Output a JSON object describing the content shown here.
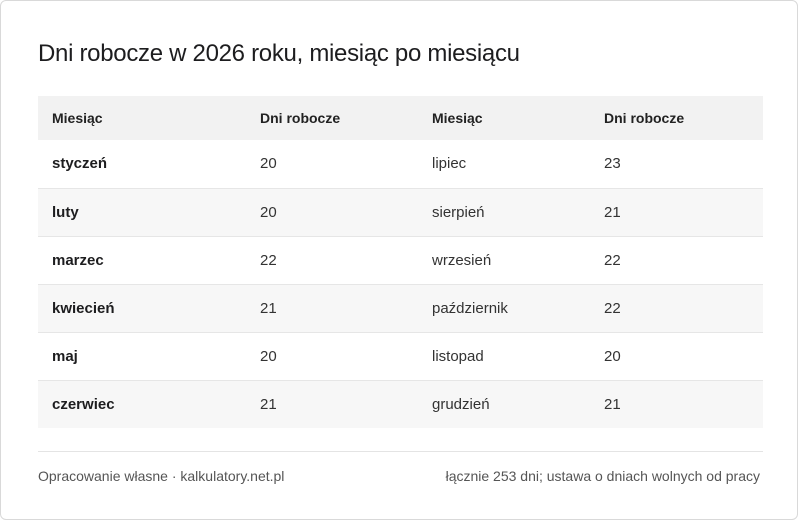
{
  "title": "Dni robocze w 2026 roku, miesiąc po miesiącu",
  "table": {
    "headers": [
      "Miesiąc",
      "Dni robocze",
      "Miesiąc",
      "Dni robocze"
    ],
    "rows": [
      {
        "month_a": "styczeń",
        "days_a": "20",
        "month_b": "lipiec",
        "days_b": "23"
      },
      {
        "month_a": "luty",
        "days_a": "20",
        "month_b": "sierpień",
        "days_b": "21"
      },
      {
        "month_a": "marzec",
        "days_a": "22",
        "month_b": "wrzesień",
        "days_b": "22"
      },
      {
        "month_a": "kwiecień",
        "days_a": "21",
        "month_b": "październik",
        "days_b": "22"
      },
      {
        "month_a": "maj",
        "days_a": "20",
        "month_b": "listopad",
        "days_b": "20"
      },
      {
        "month_a": "czerwiec",
        "days_a": "21",
        "month_b": "grudzień",
        "days_b": "21"
      }
    ]
  },
  "footer": {
    "source": "Opracowanie własne · kalkulatory.net.pl",
    "note": "łącznie 253 dni; ustawa o dniach wolnych od pracy"
  }
}
